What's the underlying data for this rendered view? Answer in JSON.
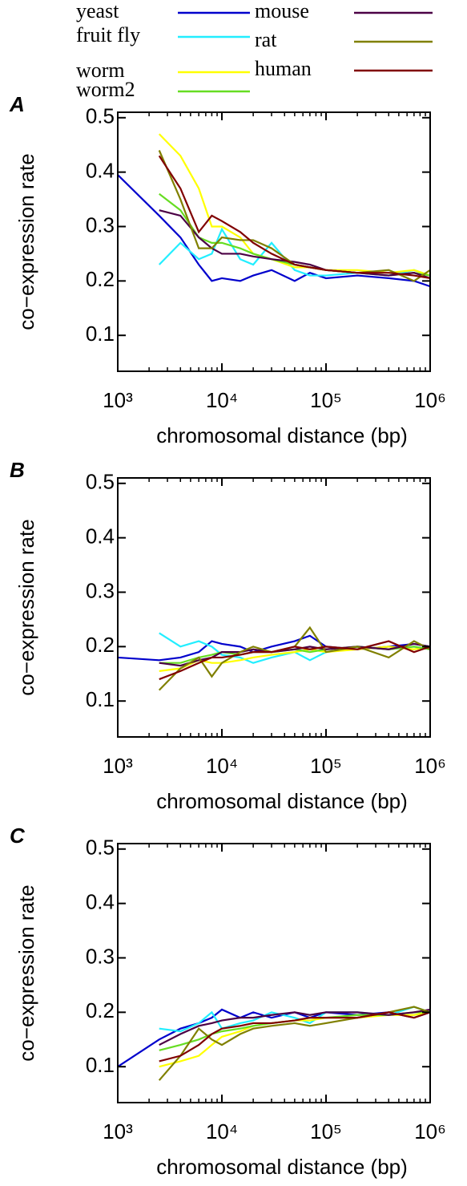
{
  "legend": [
    {
      "name": "yeast",
      "color": "#0000cc"
    },
    {
      "name": "fruit fly",
      "color": "#22eeff"
    },
    {
      "name": "worm",
      "color": "#ffff00"
    },
    {
      "name": "worm2",
      "color": "#66dd22"
    },
    {
      "name": "mouse",
      "color": "#4b0045"
    },
    {
      "name": "rat",
      "color": "#808000"
    },
    {
      "name": "human",
      "color": "#800000"
    }
  ],
  "chart_data": [
    {
      "type": "line",
      "label": "A",
      "xlabel": "chromosomal distance (bp)",
      "ylabel": "co−expression rate",
      "log_x": true,
      "minor_ticks": true,
      "xlim": [
        1000,
        1000000
      ],
      "xticks": [
        {
          "value": 1000,
          "label": "10³"
        },
        {
          "value": 10000,
          "label": "10⁴"
        },
        {
          "value": 100000,
          "label": "10⁵"
        },
        {
          "value": 1000000,
          "label": "10⁶"
        }
      ],
      "ylim": [
        0.034,
        0.51
      ],
      "yticks": [
        0.1,
        0.2,
        0.3,
        0.4,
        0.5
      ],
      "x": [
        1000,
        2500,
        4000,
        6000,
        8000,
        10000,
        15000,
        20000,
        30000,
        50000,
        70000,
        100000,
        200000,
        400000,
        700000,
        1000000
      ],
      "series": [
        {
          "values": [
            0.395,
            0.32,
            0.28,
            0.23,
            0.2,
            0.205,
            0.2,
            0.21,
            0.22,
            0.2,
            0.215,
            0.205,
            0.21,
            0.205,
            0.2,
            0.19
          ]
        },
        {
          "values": [
            null,
            0.23,
            0.27,
            0.24,
            0.25,
            0.295,
            0.24,
            0.23,
            0.27,
            0.22,
            0.21,
            0.21,
            0.215,
            0.21,
            0.22,
            0.21
          ]
        },
        {
          "values": [
            null,
            0.47,
            0.43,
            0.37,
            0.3,
            0.3,
            0.28,
            0.25,
            0.24,
            0.225,
            0.225,
            0.22,
            0.22,
            0.215,
            0.22,
            0.21
          ]
        },
        {
          "values": [
            null,
            0.36,
            0.33,
            0.28,
            0.27,
            0.27,
            0.26,
            0.25,
            0.24,
            0.23,
            0.225,
            0.22,
            0.215,
            0.21,
            0.215,
            0.21
          ]
        },
        {
          "values": [
            null,
            0.33,
            0.32,
            0.28,
            0.26,
            0.25,
            0.25,
            0.245,
            0.24,
            0.235,
            0.23,
            0.22,
            0.215,
            0.21,
            0.215,
            0.205
          ]
        },
        {
          "values": [
            null,
            0.44,
            0.35,
            0.26,
            0.26,
            0.28,
            0.275,
            0.275,
            0.26,
            0.23,
            0.225,
            0.22,
            0.215,
            0.22,
            0.2,
            0.22
          ]
        },
        {
          "values": [
            null,
            0.43,
            0.37,
            0.29,
            0.32,
            0.31,
            0.29,
            0.27,
            0.25,
            0.23,
            0.225,
            0.22,
            0.215,
            0.215,
            0.21,
            0.205
          ]
        }
      ]
    },
    {
      "type": "line",
      "label": "B",
      "xlabel": "chromosomal distance (bp)",
      "ylabel": "co−expression rate",
      "log_x": true,
      "minor_ticks": true,
      "xlim": [
        1000,
        1000000
      ],
      "xticks": [
        {
          "value": 1000,
          "label": "10³"
        },
        {
          "value": 10000,
          "label": "10⁴"
        },
        {
          "value": 100000,
          "label": "10⁵"
        },
        {
          "value": 1000000,
          "label": "10⁶"
        }
      ],
      "ylim": [
        0.034,
        0.51
      ],
      "yticks": [
        0.1,
        0.2,
        0.3,
        0.4,
        0.5
      ],
      "x": [
        1000,
        2500,
        4000,
        6000,
        8000,
        10000,
        15000,
        20000,
        30000,
        50000,
        70000,
        100000,
        200000,
        400000,
        700000,
        1000000
      ],
      "series": [
        {
          "values": [
            0.18,
            0.175,
            0.18,
            0.19,
            0.21,
            0.205,
            0.2,
            0.19,
            0.2,
            0.21,
            0.22,
            0.2,
            0.195,
            0.2,
            0.205,
            0.2
          ]
        },
        {
          "values": [
            null,
            0.225,
            0.2,
            0.21,
            0.2,
            0.185,
            0.18,
            0.17,
            0.18,
            0.19,
            0.175,
            0.19,
            0.2,
            0.195,
            0.2,
            0.195
          ]
        },
        {
          "values": [
            null,
            0.155,
            0.16,
            0.175,
            0.17,
            0.17,
            0.175,
            0.18,
            0.185,
            0.19,
            0.195,
            0.19,
            0.195,
            0.2,
            0.195,
            0.2
          ]
        },
        {
          "values": [
            null,
            0.17,
            0.17,
            0.18,
            0.185,
            0.19,
            0.185,
            0.19,
            0.19,
            0.195,
            0.19,
            0.195,
            0.2,
            0.195,
            0.2,
            0.195
          ]
        },
        {
          "values": [
            null,
            0.17,
            0.165,
            0.175,
            0.18,
            0.19,
            0.19,
            0.195,
            0.19,
            0.195,
            0.2,
            0.195,
            0.2,
            0.195,
            0.205,
            0.2
          ]
        },
        {
          "values": [
            null,
            0.12,
            0.16,
            0.18,
            0.145,
            0.17,
            0.19,
            0.2,
            0.19,
            0.2,
            0.235,
            0.19,
            0.2,
            0.18,
            0.21,
            0.195
          ]
        },
        {
          "values": [
            null,
            0.14,
            0.155,
            0.17,
            0.18,
            0.18,
            0.185,
            0.19,
            0.19,
            0.2,
            0.195,
            0.2,
            0.195,
            0.21,
            0.19,
            0.2
          ]
        }
      ]
    },
    {
      "type": "line",
      "label": "C",
      "xlabel": "chromosomal distance (bp)",
      "ylabel": "co−expression rate",
      "log_x": true,
      "minor_ticks": true,
      "xlim": [
        1000,
        1000000
      ],
      "xticks": [
        {
          "value": 1000,
          "label": "10³"
        },
        {
          "value": 10000,
          "label": "10⁴"
        },
        {
          "value": 100000,
          "label": "10⁵"
        },
        {
          "value": 1000000,
          "label": "10⁶"
        }
      ],
      "ylim": [
        0.034,
        0.51
      ],
      "yticks": [
        0.1,
        0.2,
        0.3,
        0.4,
        0.5
      ],
      "x": [
        1000,
        2500,
        4000,
        6000,
        8000,
        10000,
        15000,
        20000,
        30000,
        50000,
        70000,
        100000,
        200000,
        400000,
        700000,
        1000000
      ],
      "series": [
        {
          "values": [
            0.1,
            0.15,
            0.17,
            0.18,
            0.19,
            0.205,
            0.19,
            0.2,
            0.19,
            0.2,
            0.19,
            0.2,
            0.195,
            0.2,
            0.19,
            0.2
          ]
        },
        {
          "values": [
            null,
            0.17,
            0.165,
            0.18,
            0.2,
            0.17,
            0.18,
            0.185,
            0.2,
            0.19,
            0.18,
            0.2,
            0.2,
            0.195,
            0.21,
            0.2
          ]
        },
        {
          "values": [
            null,
            0.1,
            0.11,
            0.12,
            0.14,
            0.155,
            0.165,
            0.175,
            0.18,
            0.185,
            0.185,
            0.19,
            0.19,
            0.195,
            0.195,
            0.2
          ]
        },
        {
          "values": [
            null,
            0.13,
            0.14,
            0.15,
            0.16,
            0.165,
            0.17,
            0.175,
            0.18,
            0.185,
            0.19,
            0.19,
            0.195,
            0.195,
            0.2,
            0.2
          ]
        },
        {
          "values": [
            null,
            0.14,
            0.16,
            0.175,
            0.18,
            0.185,
            0.19,
            0.19,
            0.195,
            0.2,
            0.195,
            0.2,
            0.2,
            0.195,
            0.2,
            0.205
          ]
        },
        {
          "values": [
            null,
            0.075,
            0.12,
            0.17,
            0.15,
            0.14,
            0.16,
            0.17,
            0.175,
            0.18,
            0.175,
            0.18,
            0.19,
            0.2,
            0.21,
            0.2
          ]
        },
        {
          "values": [
            null,
            0.11,
            0.12,
            0.14,
            0.16,
            0.17,
            0.175,
            0.18,
            0.18,
            0.185,
            0.19,
            0.19,
            0.19,
            0.2,
            0.19,
            0.2
          ]
        }
      ]
    }
  ]
}
